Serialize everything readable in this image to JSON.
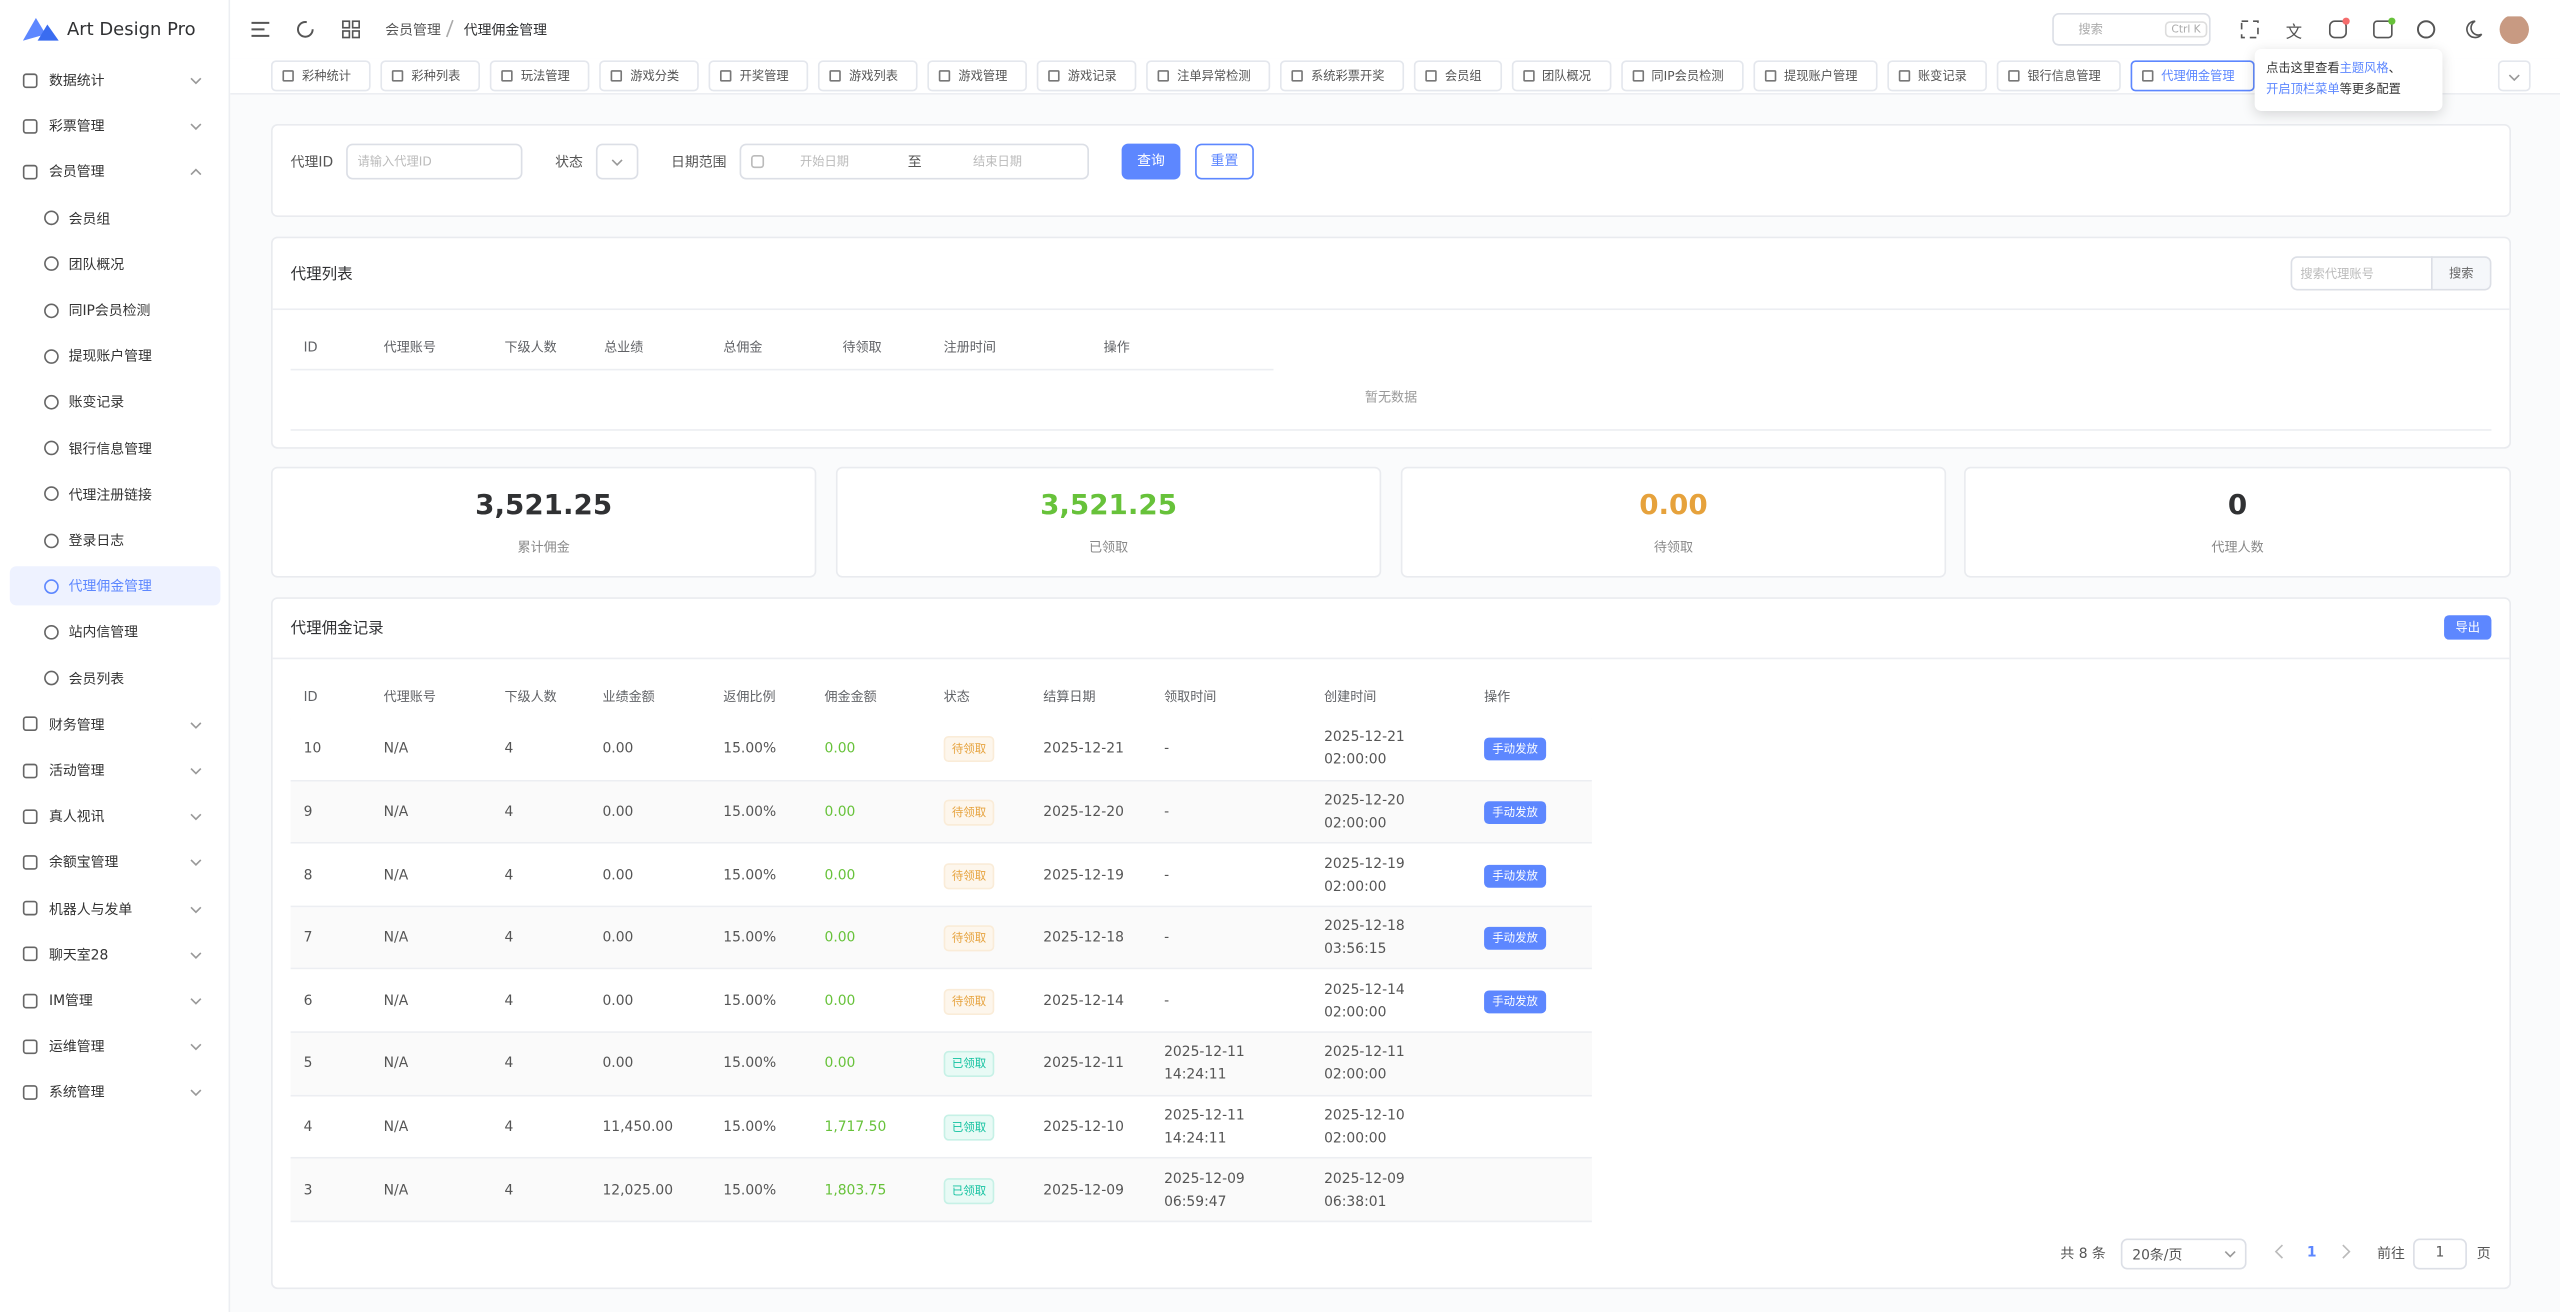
{
  "sidebar": {
    "brand": "Art Design Pro",
    "menu": [
      {
        "label": "数据统计"
      },
      {
        "label": "彩票管理"
      },
      {
        "label": "会员管理",
        "children": [
          "会员组",
          "团队概况",
          "同IP会员检测",
          "提现账户管理",
          "账变记录",
          "银行信息管理",
          "代理注册链接",
          "登录日志",
          "代理佣金管理",
          "站内信管理",
          "会员列表"
        ]
      },
      {
        "label": "财务管理"
      },
      {
        "label": "活动管理"
      },
      {
        "label": "真人视讯"
      },
      {
        "label": "余额宝管理"
      },
      {
        "label": "机器人与发单"
      },
      {
        "label": "聊天室28"
      },
      {
        "label": "IM管理"
      },
      {
        "label": "运维管理"
      },
      {
        "label": "系统管理"
      }
    ]
  },
  "header": {
    "breadcrumb": [
      "会员管理",
      "代理佣金管理"
    ],
    "search_placeholder": "搜索",
    "search_shortcut": "Ctrl K"
  },
  "tabs": [
    "彩种统计",
    "彩种列表",
    "玩法管理",
    "游戏分类",
    "开奖管理",
    "游戏列表",
    "游戏管理",
    "游戏记录",
    "注单异常检测",
    "系统彩票开奖",
    "会员组",
    "团队概况",
    "同IP会员检测",
    "提现账户管理",
    "账变记录",
    "银行信息管理",
    "代理佣金管理"
  ],
  "tooltip": {
    "line1_text": "点击这里查看",
    "line1_link": "主题风格",
    "line1_sep": "、",
    "line2_link": "开启顶栏菜单",
    "line2_text": "等更多配置"
  },
  "filter": {
    "agent_id_label": "代理ID",
    "agent_id_placeholder": "请输入代理ID",
    "status_label": "状态",
    "date_label": "日期范围",
    "date_start": "开始日期",
    "date_sep": "至",
    "date_end": "结束日期",
    "query_button": "查询",
    "reset_button": "重置"
  },
  "agent_list": {
    "title": "代理列表",
    "search_placeholder": "搜索代理账号",
    "search_button": "搜索",
    "columns": [
      "ID",
      "代理账号",
      "下级人数",
      "总业绩",
      "总佣金",
      "待领取",
      "注册时间",
      "操作"
    ],
    "empty": "暂无数据"
  },
  "stats": [
    {
      "value": "3,521.25",
      "label": "累计佣金",
      "color": "#303133"
    },
    {
      "value": "3,521.25",
      "label": "已领取",
      "color": "#67c23a"
    },
    {
      "value": "0.00",
      "label": "待领取",
      "color": "#e6a23c"
    },
    {
      "value": "0",
      "label": "代理人数",
      "color": "#303133"
    }
  ],
  "records": {
    "title": "代理佣金记录",
    "export_button": "导出",
    "columns": [
      "ID",
      "代理账号",
      "下级人数",
      "业绩金额",
      "返佣比例",
      "佣金金额",
      "状态",
      "结算日期",
      "领取时间",
      "创建时间",
      "操作"
    ],
    "rows": [
      {
        "id": "10",
        "account": "N/A",
        "subs": "4",
        "performance": "0.00",
        "rate": "15.00%",
        "commission": "0.00",
        "status": "待领取",
        "settle_date": "2025-12-21",
        "claim_time": [
          "-"
        ],
        "created": [
          "2025-12-21",
          "02:00:00"
        ],
        "action": "手动发放"
      },
      {
        "id": "9",
        "account": "N/A",
        "subs": "4",
        "performance": "0.00",
        "rate": "15.00%",
        "commission": "0.00",
        "status": "待领取",
        "settle_date": "2025-12-20",
        "claim_time": [
          "-"
        ],
        "created": [
          "2025-12-20",
          "02:00:00"
        ],
        "action": "手动发放"
      },
      {
        "id": "8",
        "account": "N/A",
        "subs": "4",
        "performance": "0.00",
        "rate": "15.00%",
        "commission": "0.00",
        "status": "待领取",
        "settle_date": "2025-12-19",
        "claim_time": [
          "-"
        ],
        "created": [
          "2025-12-19",
          "02:00:00"
        ],
        "action": "手动发放"
      },
      {
        "id": "7",
        "account": "N/A",
        "subs": "4",
        "performance": "0.00",
        "rate": "15.00%",
        "commission": "0.00",
        "status": "待领取",
        "settle_date": "2025-12-18",
        "claim_time": [
          "-"
        ],
        "created": [
          "2025-12-18",
          "03:56:15"
        ],
        "action": "手动发放"
      },
      {
        "id": "6",
        "account": "N/A",
        "subs": "4",
        "performance": "0.00",
        "rate": "15.00%",
        "commission": "0.00",
        "status": "待领取",
        "settle_date": "2025-12-14",
        "claim_time": [
          "-"
        ],
        "created": [
          "2025-12-14",
          "02:00:00"
        ],
        "action": "手动发放"
      },
      {
        "id": "5",
        "account": "N/A",
        "subs": "4",
        "performance": "0.00",
        "rate": "15.00%",
        "commission": "0.00",
        "status": "已领取",
        "settle_date": "2025-12-11",
        "claim_time": [
          "2025-12-11",
          "14:24:11"
        ],
        "created": [
          "2025-12-11",
          "02:00:00"
        ]
      },
      {
        "id": "4",
        "account": "N/A",
        "subs": "4",
        "performance": "11,450.00",
        "rate": "15.00%",
        "commission": "1,717.50",
        "status": "已领取",
        "settle_date": "2025-12-10",
        "claim_time": [
          "2025-12-11",
          "14:24:11"
        ],
        "created": [
          "2025-12-10",
          "02:00:00"
        ]
      },
      {
        "id": "3",
        "account": "N/A",
        "subs": "4",
        "performance": "12,025.00",
        "rate": "15.00%",
        "commission": "1,803.75",
        "status": "已领取",
        "settle_date": "2025-12-09",
        "claim_time": [
          "2025-12-09",
          "06:59:47"
        ],
        "created": [
          "2025-12-09",
          "06:38:01"
        ]
      }
    ]
  },
  "pagination": {
    "total": "共 8 条",
    "page_size": "20条/页",
    "current": "1",
    "goto_label": "前往",
    "goto_value": "1",
    "goto_unit": "页"
  }
}
